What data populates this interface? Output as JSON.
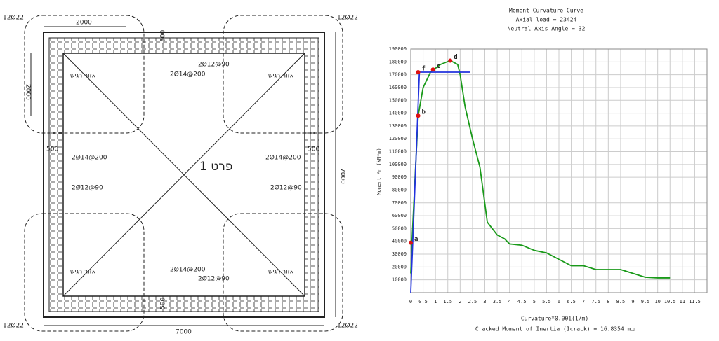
{
  "drawing": {
    "labels": [
      "12Ø22",
      "12Ø22",
      "12Ø22",
      "12Ø22",
      "2000",
      "2000",
      "500",
      "2Ø14@200",
      "2Ø12@90",
      "אזור רגיש",
      "אזור רגיש",
      "500",
      "2Ø14@200",
      "2Ø12@90",
      "פרט 1",
      "500",
      "2Ø14@200",
      "2Ø12@90",
      "7000",
      "אזור רגיש",
      "אזור רגיש",
      "2Ø14@200",
      "2Ø12@90",
      "500",
      "7000"
    ]
  },
  "chart_data": {
    "type": "line",
    "title": "Moment Curvature Curve",
    "subtitle": [
      "Axial load = 23424",
      "Neutral Axis Angle = 32"
    ],
    "x_label": "Curvature*0.001(1/m)",
    "y_label": "Moment Mn (kN*m)",
    "note": "Cracked Moment of Inertia (Icrack) = 16.8354 m□",
    "xlim": [
      0,
      12
    ],
    "ylim": [
      0,
      190000
    ],
    "xticks": [
      0,
      0.5,
      1,
      1.5,
      2,
      2.5,
      3,
      3.5,
      4,
      4.5,
      5,
      5.5,
      6,
      6.5,
      7,
      7.5,
      8,
      8.5,
      9,
      9.5,
      10,
      10.5,
      11,
      11.5
    ],
    "yticks": [
      10000,
      20000,
      30000,
      40000,
      50000,
      60000,
      70000,
      80000,
      90000,
      100000,
      110000,
      120000,
      130000,
      140000,
      150000,
      160000,
      170000,
      180000,
      190000
    ],
    "grid": true,
    "series": [
      {
        "color": "#1a9a1a",
        "x": [
          0,
          0.05,
          0.2,
          0.3,
          0.5,
          0.8,
          1.2,
          1.6,
          1.9,
          2.0,
          2.2,
          2.5,
          2.8,
          3.1,
          3.5,
          3.8,
          4.0,
          4.5,
          5.0,
          5.5,
          6.0,
          6.5,
          7.0,
          7.5,
          8.5,
          9.0,
          9.5,
          10.0,
          10.5
        ],
        "values": [
          15000,
          40000,
          100000,
          138000,
          160000,
          172000,
          178000,
          181000,
          178000,
          170000,
          145000,
          120000,
          98000,
          55000,
          45000,
          42000,
          38000,
          37000,
          33000,
          31000,
          26000,
          21000,
          21000,
          18000,
          18000,
          15000,
          12000,
          11500,
          11500
        ]
      },
      {
        "color": "#2233dd",
        "x": [
          0,
          0.35,
          2.4
        ],
        "values": [
          0,
          172000,
          172000
        ]
      }
    ],
    "points": {
      "color": "#dd1111",
      "labels": [
        "a",
        "b",
        "c",
        "d",
        "f"
      ],
      "x": [
        0,
        0.3,
        0.9,
        1.6,
        0.3
      ],
      "values": [
        39000,
        138000,
        174000,
        181000,
        172000
      ]
    }
  }
}
